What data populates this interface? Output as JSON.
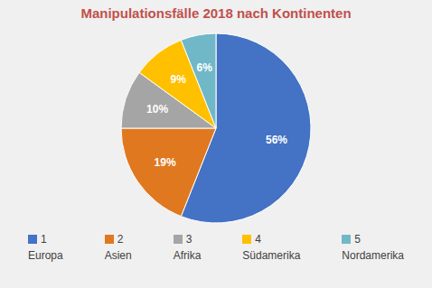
{
  "chart_data": {
    "type": "pie",
    "title": "Manipulationsfälle 2018 nach Kontinenten",
    "categories": [
      "Europa",
      "Asien",
      "Afrika",
      "Südamerika",
      "Nordamerika"
    ],
    "values": [
      56,
      19,
      10,
      9,
      6
    ],
    "value_labels": [
      "56%",
      "19%",
      "10%",
      "9%",
      "6%"
    ],
    "colors": [
      "#4472C4",
      "#E07820",
      "#A5A5A5",
      "#FFC000",
      "#70B8C8"
    ],
    "annotations": [
      "1",
      "2",
      "3",
      "4",
      "5"
    ],
    "data_labels": true,
    "legend": "bottom"
  }
}
